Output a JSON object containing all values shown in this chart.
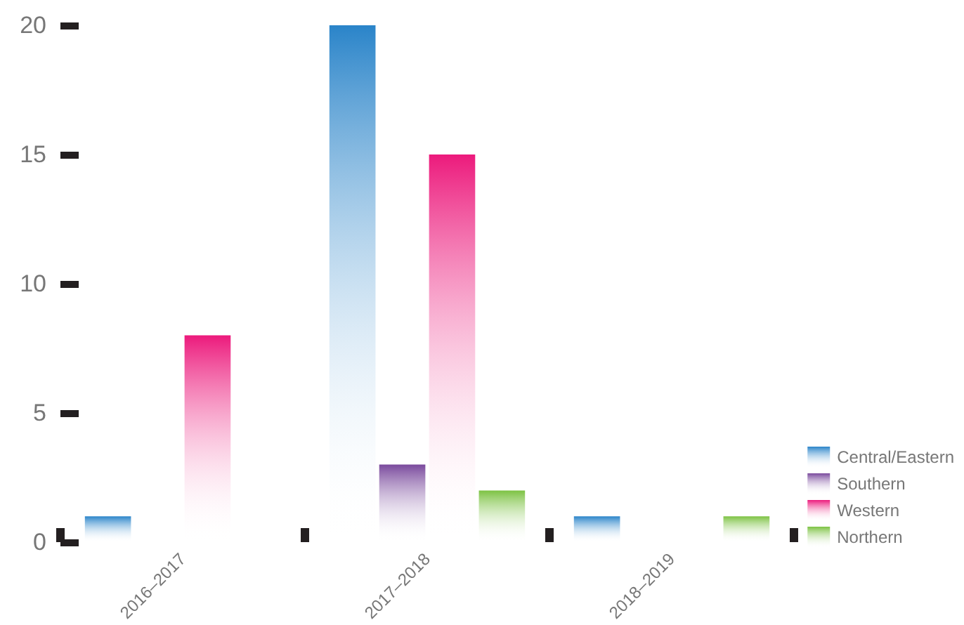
{
  "chart_data": {
    "type": "bar",
    "categories": [
      "2016–2017",
      "2017–2018",
      "2018–2019"
    ],
    "series": [
      {
        "name": "Central/Eastern",
        "color": "#2a84c9",
        "values": [
          1,
          20,
          1
        ]
      },
      {
        "name": "Southern",
        "color": "#7a4a9d",
        "values": [
          null,
          3,
          null
        ]
      },
      {
        "name": "Western",
        "color": "#ec1a7c",
        "values": [
          8,
          15,
          null
        ]
      },
      {
        "name": "Northern",
        "color": "#7cc242",
        "values": [
          null,
          2,
          1
        ]
      }
    ],
    "ylim": [
      0,
      20
    ],
    "yticks": [
      0,
      5,
      10,
      15,
      20
    ],
    "legend": "bottom right"
  }
}
